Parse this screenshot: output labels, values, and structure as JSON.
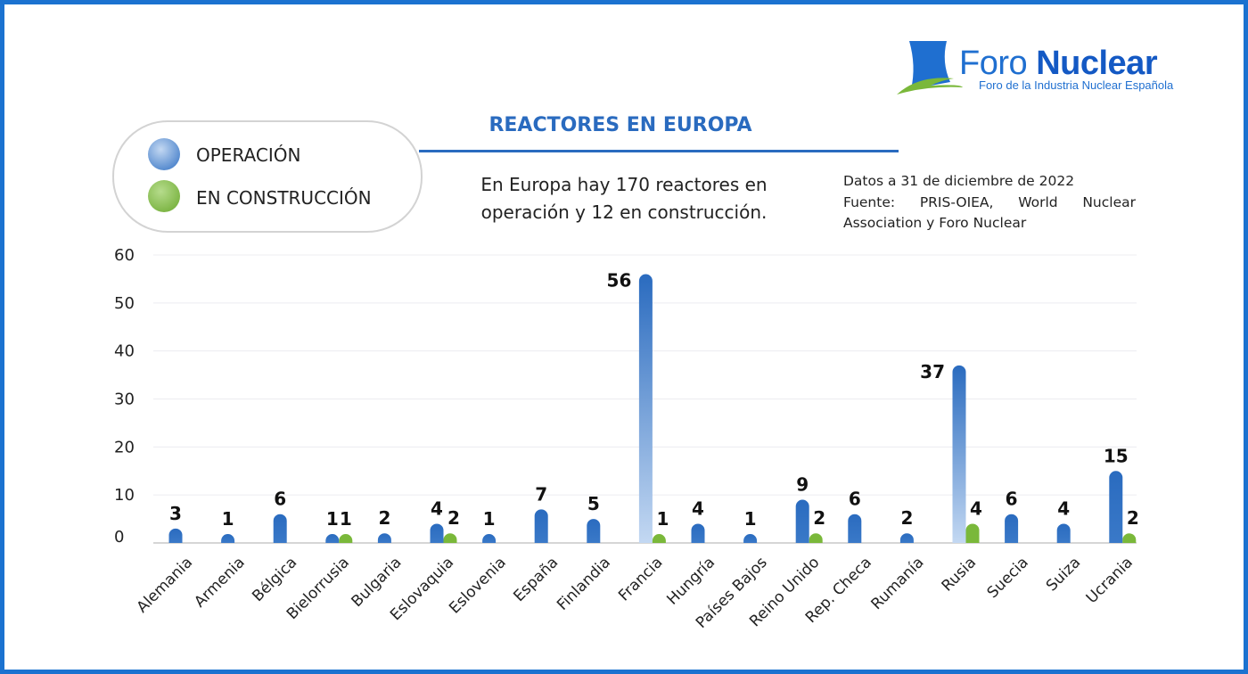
{
  "logo": {
    "brand_light": "Foro",
    "brand_bold": "Nuclear",
    "tagline": "Foro de la Industria Nuclear Española"
  },
  "legend": {
    "operation": "OPERACIÓN",
    "construction": "EN CONSTRUCCIÓN"
  },
  "header": {
    "title": "REACTORES EN EUROPA",
    "summary_line1": "En Europa hay 170 reactores en",
    "summary_line2": "operación y 12 en construcción.",
    "source_line1": "Datos a 31 de diciembre de 2022",
    "source_line2": "Fuente: PRIS-OIEA, World Nuclear",
    "source_line3": "Association y Foro Nuclear"
  },
  "colors": {
    "operation": "#2a6bbf",
    "operation_light": "#b9d1f0",
    "construction": "#7ab83a",
    "frame": "#1b72d0"
  },
  "chart_data": {
    "type": "bar",
    "title": "REACTORES EN EUROPA",
    "xlabel": "",
    "ylabel": "",
    "ylim": [
      0,
      60
    ],
    "yticks": [
      0,
      10,
      20,
      30,
      40,
      50,
      60
    ],
    "grid": true,
    "legend_position": "top-left",
    "categories": [
      "Alemania",
      "Armenia",
      "Bélgica",
      "Bielorrusia",
      "Bulgaria",
      "Eslovaquia",
      "Eslovenia",
      "España",
      "Finlandia",
      "Francia",
      "Hungría",
      "Países Bajos",
      "Reino Unido",
      "Rep. Checa",
      "Rumanía",
      "Rusia",
      "Suecia",
      "Suiza",
      "Ucrania"
    ],
    "series": [
      {
        "name": "OPERACIÓN",
        "values": [
          3,
          1,
          6,
          1,
          2,
          4,
          1,
          7,
          5,
          56,
          4,
          1,
          9,
          6,
          2,
          37,
          6,
          4,
          15
        ]
      },
      {
        "name": "EN CONSTRUCCIÓN",
        "values": [
          null,
          null,
          null,
          1,
          null,
          2,
          null,
          null,
          null,
          1,
          null,
          null,
          2,
          null,
          null,
          4,
          null,
          null,
          2
        ]
      }
    ]
  }
}
